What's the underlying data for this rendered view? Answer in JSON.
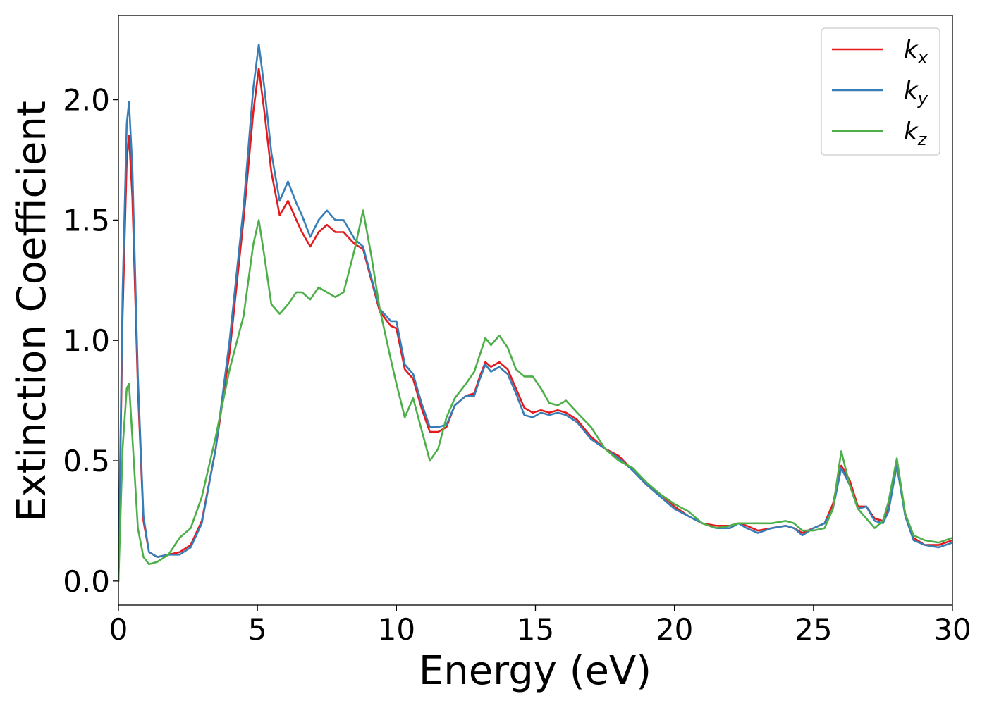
{
  "chart_data": {
    "type": "line",
    "title": "",
    "xlabel": "Energy (eV)",
    "ylabel": "Extinction Coefficient",
    "xlim": [
      0,
      30
    ],
    "ylim": [
      -0.1,
      2.35
    ],
    "x_ticks": [
      0,
      5,
      10,
      15,
      20,
      25,
      30
    ],
    "x_tick_labels": [
      "0",
      "5",
      "10",
      "15",
      "20",
      "25",
      "30"
    ],
    "y_ticks": [
      0.0,
      0.5,
      1.0,
      1.5,
      2.0
    ],
    "y_tick_labels": [
      "0.0",
      "0.5",
      "1.0",
      "1.5",
      "2.0"
    ],
    "grid": false,
    "legend_position": "top-right",
    "series": [
      {
        "name": "k_x",
        "label_base": "k",
        "label_sub": "x",
        "color": "#e41a1c",
        "x": [
          0,
          0.15,
          0.3,
          0.38,
          0.5,
          0.7,
          0.9,
          1.1,
          1.4,
          1.8,
          2.2,
          2.6,
          3.0,
          3.5,
          4.0,
          4.5,
          4.85,
          5.05,
          5.25,
          5.5,
          5.8,
          6.1,
          6.4,
          6.6,
          6.9,
          7.2,
          7.5,
          7.8,
          8.1,
          8.5,
          8.8,
          9.1,
          9.4,
          9.8,
          10.0,
          10.3,
          10.6,
          10.9,
          11.2,
          11.5,
          11.8,
          12.1,
          12.5,
          12.8,
          13.0,
          13.2,
          13.4,
          13.7,
          14.0,
          14.3,
          14.6,
          14.9,
          15.2,
          15.5,
          15.8,
          16.1,
          16.5,
          17.0,
          17.5,
          18.0,
          18.5,
          19.0,
          19.5,
          20.0,
          20.5,
          21.0,
          21.5,
          22.0,
          22.3,
          22.6,
          23.0,
          23.5,
          24.0,
          24.3,
          24.6,
          25.0,
          25.4,
          25.7,
          26.0,
          26.3,
          26.6,
          26.9,
          27.2,
          27.5,
          27.7,
          28.0,
          28.3,
          28.6,
          29.0,
          29.5,
          30.0
        ],
        "y": [
          0.0,
          1.1,
          1.75,
          1.85,
          1.6,
          0.8,
          0.25,
          0.12,
          0.1,
          0.11,
          0.12,
          0.15,
          0.25,
          0.55,
          0.95,
          1.5,
          1.95,
          2.13,
          1.95,
          1.7,
          1.52,
          1.58,
          1.5,
          1.45,
          1.39,
          1.45,
          1.48,
          1.45,
          1.45,
          1.4,
          1.38,
          1.25,
          1.12,
          1.06,
          1.05,
          0.88,
          0.84,
          0.72,
          0.62,
          0.62,
          0.64,
          0.73,
          0.77,
          0.78,
          0.85,
          0.91,
          0.89,
          0.91,
          0.88,
          0.8,
          0.72,
          0.7,
          0.71,
          0.7,
          0.71,
          0.7,
          0.67,
          0.6,
          0.55,
          0.52,
          0.46,
          0.4,
          0.36,
          0.31,
          0.27,
          0.24,
          0.23,
          0.23,
          0.24,
          0.23,
          0.21,
          0.22,
          0.23,
          0.22,
          0.2,
          0.22,
          0.24,
          0.32,
          0.48,
          0.42,
          0.31,
          0.31,
          0.26,
          0.25,
          0.3,
          0.49,
          0.28,
          0.18,
          0.15,
          0.15,
          0.17
        ]
      },
      {
        "name": "k_y",
        "label_base": "k",
        "label_sub": "y",
        "color": "#377eb8",
        "x": [
          0,
          0.15,
          0.3,
          0.38,
          0.5,
          0.7,
          0.9,
          1.1,
          1.4,
          1.8,
          2.2,
          2.6,
          3.0,
          3.5,
          4.0,
          4.5,
          4.85,
          5.05,
          5.25,
          5.5,
          5.8,
          6.1,
          6.4,
          6.6,
          6.9,
          7.2,
          7.5,
          7.8,
          8.1,
          8.5,
          8.8,
          9.1,
          9.4,
          9.8,
          10.0,
          10.3,
          10.6,
          10.9,
          11.2,
          11.5,
          11.8,
          12.1,
          12.5,
          12.8,
          13.0,
          13.2,
          13.4,
          13.7,
          14.0,
          14.3,
          14.6,
          14.9,
          15.2,
          15.5,
          15.8,
          16.1,
          16.5,
          17.0,
          17.5,
          18.0,
          18.5,
          19.0,
          19.5,
          20.0,
          20.5,
          21.0,
          21.5,
          22.0,
          22.3,
          22.6,
          23.0,
          23.5,
          24.0,
          24.3,
          24.6,
          25.0,
          25.4,
          25.7,
          26.0,
          26.3,
          26.6,
          26.9,
          27.2,
          27.5,
          27.7,
          28.0,
          28.3,
          28.6,
          29.0,
          29.5,
          30.0
        ],
        "y": [
          0.0,
          1.2,
          1.9,
          1.99,
          1.72,
          0.85,
          0.27,
          0.12,
          0.1,
          0.11,
          0.11,
          0.14,
          0.24,
          0.55,
          1.0,
          1.55,
          2.05,
          2.23,
          2.05,
          1.78,
          1.58,
          1.66,
          1.57,
          1.52,
          1.43,
          1.5,
          1.54,
          1.5,
          1.5,
          1.42,
          1.39,
          1.26,
          1.13,
          1.08,
          1.08,
          0.9,
          0.86,
          0.74,
          0.64,
          0.64,
          0.65,
          0.73,
          0.77,
          0.77,
          0.84,
          0.9,
          0.87,
          0.89,
          0.86,
          0.78,
          0.69,
          0.68,
          0.7,
          0.69,
          0.7,
          0.69,
          0.66,
          0.59,
          0.55,
          0.51,
          0.46,
          0.4,
          0.35,
          0.3,
          0.27,
          0.24,
          0.22,
          0.22,
          0.24,
          0.22,
          0.2,
          0.22,
          0.23,
          0.22,
          0.19,
          0.22,
          0.24,
          0.3,
          0.47,
          0.4,
          0.3,
          0.31,
          0.25,
          0.24,
          0.29,
          0.48,
          0.27,
          0.17,
          0.15,
          0.14,
          0.16
        ]
      },
      {
        "name": "k_z",
        "label_base": "k",
        "label_sub": "z",
        "color": "#4daf4a",
        "x": [
          0,
          0.15,
          0.3,
          0.38,
          0.5,
          0.7,
          0.9,
          1.1,
          1.4,
          1.8,
          2.2,
          2.6,
          3.0,
          3.5,
          4.0,
          4.5,
          4.85,
          5.05,
          5.25,
          5.5,
          5.8,
          6.1,
          6.4,
          6.6,
          6.9,
          7.2,
          7.5,
          7.8,
          8.1,
          8.5,
          8.8,
          9.1,
          9.4,
          9.8,
          10.0,
          10.3,
          10.6,
          10.9,
          11.2,
          11.5,
          11.8,
          12.1,
          12.5,
          12.8,
          13.0,
          13.2,
          13.4,
          13.7,
          14.0,
          14.3,
          14.6,
          14.9,
          15.2,
          15.5,
          15.8,
          16.1,
          16.5,
          17.0,
          17.5,
          18.0,
          18.5,
          19.0,
          19.5,
          20.0,
          20.5,
          21.0,
          21.5,
          22.0,
          22.3,
          22.6,
          23.0,
          23.5,
          24.0,
          24.3,
          24.6,
          25.0,
          25.4,
          25.7,
          26.0,
          26.3,
          26.6,
          26.9,
          27.2,
          27.5,
          27.7,
          28.0,
          28.3,
          28.6,
          29.0,
          29.5,
          30.0
        ],
        "y": [
          0.0,
          0.55,
          0.8,
          0.82,
          0.6,
          0.22,
          0.1,
          0.07,
          0.08,
          0.11,
          0.18,
          0.22,
          0.35,
          0.6,
          0.88,
          1.1,
          1.4,
          1.5,
          1.35,
          1.15,
          1.11,
          1.15,
          1.2,
          1.2,
          1.17,
          1.22,
          1.2,
          1.18,
          1.2,
          1.38,
          1.54,
          1.35,
          1.13,
          0.92,
          0.82,
          0.68,
          0.76,
          0.63,
          0.5,
          0.55,
          0.68,
          0.76,
          0.82,
          0.87,
          0.94,
          1.01,
          0.98,
          1.02,
          0.97,
          0.88,
          0.85,
          0.85,
          0.8,
          0.74,
          0.73,
          0.75,
          0.7,
          0.64,
          0.55,
          0.5,
          0.47,
          0.41,
          0.36,
          0.32,
          0.29,
          0.24,
          0.22,
          0.23,
          0.24,
          0.24,
          0.24,
          0.24,
          0.25,
          0.24,
          0.21,
          0.21,
          0.22,
          0.3,
          0.54,
          0.4,
          0.3,
          0.26,
          0.22,
          0.25,
          0.33,
          0.51,
          0.28,
          0.19,
          0.17,
          0.16,
          0.18
        ]
      }
    ]
  }
}
